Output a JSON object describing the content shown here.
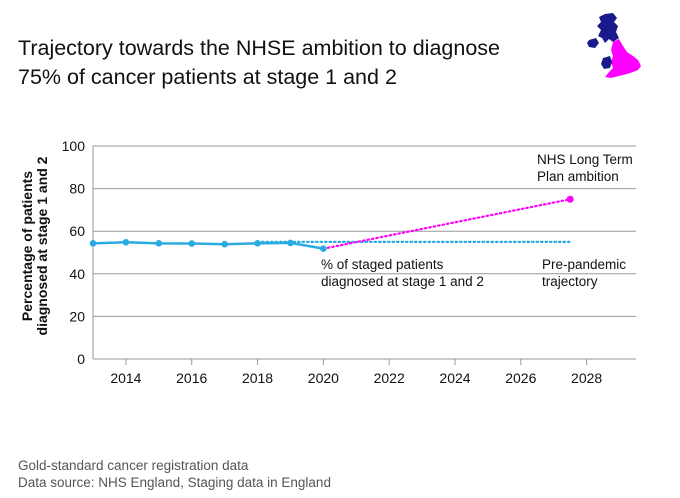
{
  "title_lines": [
    "Trajectory towards the NHSE ambition to diagnose",
    "75% of cancer patients at stage 1 and 2"
  ],
  "logo_icon": "uk-map-icon",
  "colors": {
    "observed": "#29abe2",
    "prepandemic": "#29abe2",
    "ambition": "#ff00ff",
    "grid": "#999999",
    "england": "#ff00ff",
    "rest_uk": "#1a1a8c"
  },
  "chart_data": {
    "type": "line",
    "title": "Trajectory towards the NHSE ambition to diagnose 75% of cancer patients at stage 1 and 2",
    "ylabel_lines": [
      "Percentage of patients",
      "diagnosed at stage 1 and 2"
    ],
    "xlabel": "",
    "xlim": [
      2013,
      2029.5
    ],
    "ylim": [
      0,
      100
    ],
    "yticks": [
      0,
      20,
      40,
      60,
      80,
      100
    ],
    "xticks": [
      2014,
      2016,
      2018,
      2020,
      2022,
      2024,
      2026,
      2028
    ],
    "grid": "horizontal",
    "series": [
      {
        "name": "% of staged patients diagnosed at stage 1 and 2",
        "label_lines": [
          "% of staged patients",
          "diagnosed at stage 1 and 2"
        ],
        "style": "solid",
        "markers": true,
        "x": [
          2013,
          2014,
          2015,
          2016,
          2017,
          2018,
          2019,
          2020
        ],
        "y": [
          54.3,
          54.8,
          54.3,
          54.2,
          53.9,
          54.3,
          54.5,
          51.8
        ]
      },
      {
        "name": "Pre-pandemic trajectory",
        "label_lines": [
          "Pre-pandemic",
          "trajectory"
        ],
        "style": "dotted",
        "markers": false,
        "x": [
          2018,
          2027.5
        ],
        "y": [
          55,
          55
        ]
      },
      {
        "name": "NHS Long Term Plan ambition",
        "label_lines": [
          "NHS Long Term",
          "Plan ambition"
        ],
        "style": "dotted",
        "markers": "end",
        "x": [
          2020,
          2027.5
        ],
        "y": [
          51.8,
          75
        ]
      }
    ]
  },
  "footer": {
    "line1": "Gold-standard cancer registration data",
    "line2": "Data source: NHS England, Staging data in England"
  }
}
